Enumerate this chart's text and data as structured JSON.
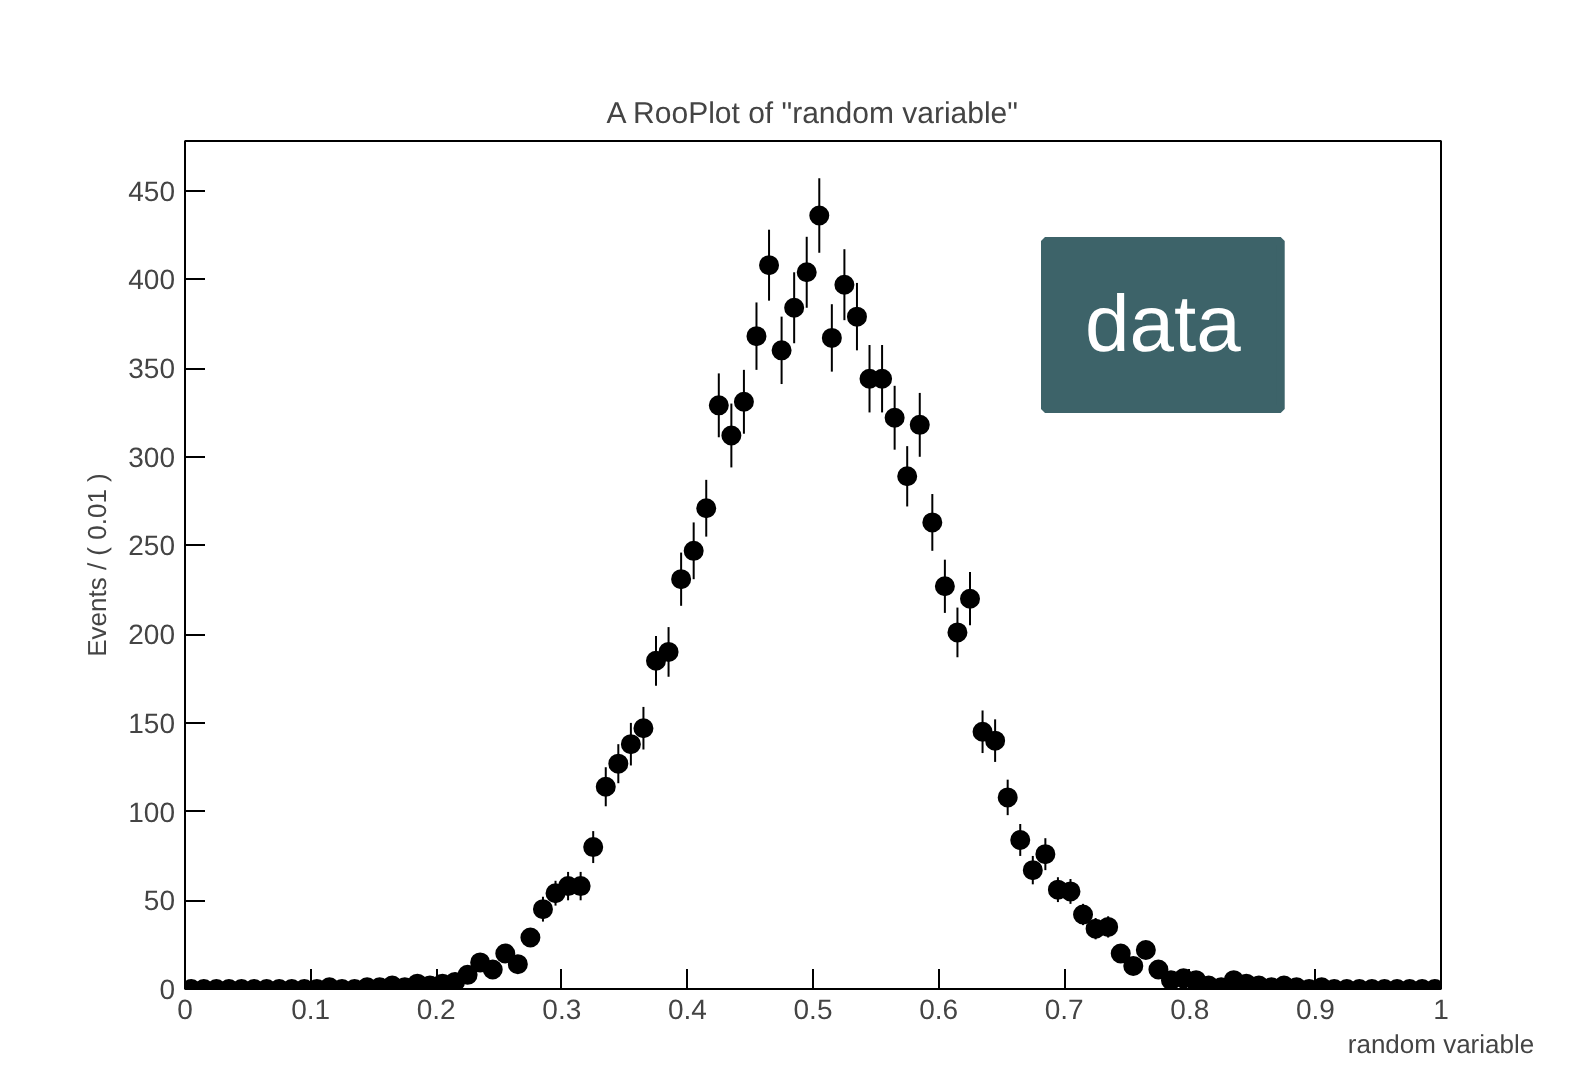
{
  "chart_data": {
    "type": "scatter",
    "title": "A RooPlot of \"random variable\"",
    "xlabel": "random variable",
    "ylabel": "Events / ( 0.01 )",
    "x": [
      0.005,
      0.015,
      0.025,
      0.035,
      0.045,
      0.055,
      0.065,
      0.075,
      0.085,
      0.095,
      0.105,
      0.115,
      0.125,
      0.135,
      0.145,
      0.155,
      0.165,
      0.175,
      0.185,
      0.195,
      0.205,
      0.215,
      0.225,
      0.235,
      0.245,
      0.255,
      0.265,
      0.275,
      0.285,
      0.295,
      0.305,
      0.315,
      0.325,
      0.335,
      0.345,
      0.355,
      0.365,
      0.375,
      0.385,
      0.395,
      0.405,
      0.415,
      0.425,
      0.435,
      0.445,
      0.455,
      0.465,
      0.475,
      0.485,
      0.495,
      0.505,
      0.515,
      0.525,
      0.535,
      0.545,
      0.555,
      0.565,
      0.575,
      0.585,
      0.595,
      0.605,
      0.615,
      0.625,
      0.635,
      0.645,
      0.655,
      0.665,
      0.675,
      0.685,
      0.695,
      0.705,
      0.715,
      0.725,
      0.735,
      0.745,
      0.755,
      0.765,
      0.775,
      0.785,
      0.795,
      0.805,
      0.815,
      0.825,
      0.835,
      0.845,
      0.855,
      0.865,
      0.875,
      0.885,
      0.895,
      0.905,
      0.915,
      0.925,
      0.935,
      0.945,
      0.955,
      0.965,
      0.975,
      0.985,
      0.995
    ],
    "values": [
      0,
      0,
      0,
      0,
      0,
      0,
      0,
      0,
      0,
      0,
      0,
      1,
      0,
      0,
      1,
      1,
      2,
      1,
      3,
      2,
      3,
      4,
      8,
      15,
      11,
      20,
      14,
      29,
      45,
      54,
      58,
      58,
      80,
      114,
      127,
      138,
      147,
      185,
      190,
      231,
      247,
      271,
      329,
      312,
      331,
      368,
      408,
      360,
      384,
      404,
      436,
      367,
      397,
      379,
      344,
      344,
      322,
      289,
      318,
      263,
      227,
      201,
      220,
      145,
      140,
      108,
      84,
      67,
      76,
      56,
      55,
      42,
      34,
      35,
      20,
      13,
      22,
      11,
      5,
      6,
      5,
      2,
      1,
      5,
      3,
      2,
      1,
      2,
      1,
      0,
      1,
      0,
      0,
      0,
      0,
      0,
      0,
      0,
      0,
      0
    ],
    "errors": [
      null,
      null,
      null,
      null,
      null,
      null,
      null,
      null,
      null,
      null,
      null,
      1,
      null,
      null,
      1,
      1,
      1,
      1,
      2,
      1,
      2,
      2,
      3,
      4,
      3,
      4,
      4,
      5,
      7,
      7,
      8,
      8,
      9,
      11,
      11,
      12,
      12,
      14,
      14,
      15,
      16,
      16,
      18,
      18,
      18,
      19,
      20,
      19,
      20,
      20,
      21,
      19,
      20,
      19,
      19,
      19,
      18,
      17,
      18,
      16,
      15,
      14,
      15,
      12,
      12,
      10,
      9,
      8,
      9,
      7,
      7,
      6,
      6,
      6,
      4,
      4,
      5,
      3,
      2,
      2,
      2,
      1,
      1,
      2,
      2,
      1,
      1,
      1,
      1,
      null,
      1,
      null,
      null,
      null,
      null,
      null,
      null,
      null,
      null,
      null
    ],
    "color": "#000000",
    "marker": "circle",
    "xlim": [
      0,
      1
    ],
    "ylim": [
      0,
      478
    ],
    "xticks": [
      0,
      0.1,
      0.2,
      0.3,
      0.4,
      0.5,
      0.6,
      0.7,
      0.8,
      0.9,
      1
    ],
    "yticks": [
      0,
      50,
      100,
      150,
      200,
      250,
      300,
      350,
      400,
      450
    ],
    "annotations": [
      "data"
    ]
  }
}
